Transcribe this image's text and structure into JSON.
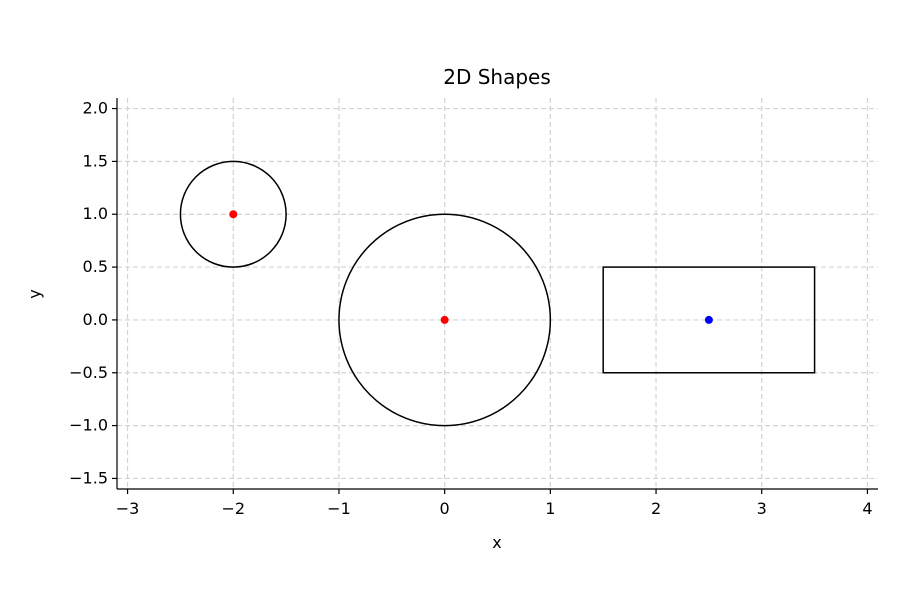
{
  "chart_data": {
    "type": "scatter",
    "title": "2D Shapes",
    "xlabel": "x",
    "ylabel": "y",
    "xlim": [
      -3.1,
      4.1
    ],
    "ylim": [
      -1.6,
      2.1
    ],
    "xticks": [
      -3,
      -2,
      -1,
      0,
      1,
      2,
      3,
      4
    ],
    "xtick_labels": [
      "−3",
      "−2",
      "−1",
      "0",
      "1",
      "2",
      "3",
      "4"
    ],
    "yticks": [
      -1.5,
      -1.0,
      -0.5,
      0.0,
      0.5,
      1.0,
      1.5,
      2.0
    ],
    "ytick_labels": [
      "−1.5",
      "−1.0",
      "−0.5",
      "0.0",
      "0.5",
      "1.0",
      "1.5",
      "2.0"
    ],
    "grid": true,
    "shapes": [
      {
        "kind": "circle",
        "center": [
          -2,
          1
        ],
        "radius": 0.5,
        "edge_color": "#000000"
      },
      {
        "kind": "circle",
        "center": [
          0,
          0
        ],
        "radius": 1.0,
        "edge_color": "#000000"
      },
      {
        "kind": "rectangle",
        "x_range": [
          1.5,
          3.5
        ],
        "y_range": [
          -0.5,
          0.5
        ],
        "edge_color": "#000000"
      }
    ],
    "points": [
      {
        "x": -2,
        "y": 1,
        "color": "#ff0000"
      },
      {
        "x": 0,
        "y": 0,
        "color": "#ff0000"
      },
      {
        "x": 2.5,
        "y": 0,
        "color": "#0000ff"
      }
    ]
  }
}
